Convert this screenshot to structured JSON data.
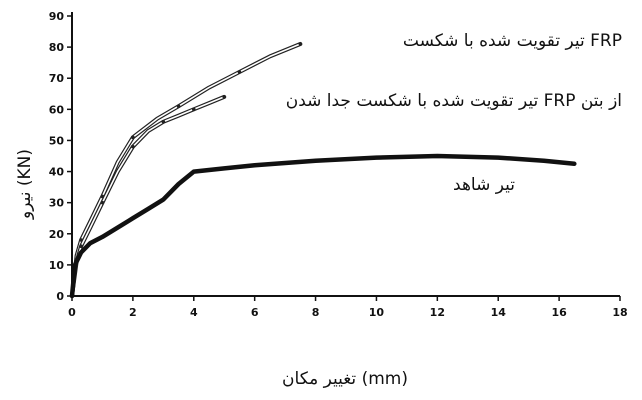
{
  "chart_data": {
    "type": "line",
    "xlabel": "تغییر مکان (mm)",
    "ylabel": "نیرو (KN)",
    "xlim": [
      0,
      18
    ],
    "ylim": [
      0,
      90
    ],
    "xticks": [
      0,
      2,
      4,
      6,
      8,
      10,
      12,
      14,
      16,
      18
    ],
    "yticks": [
      0,
      10,
      20,
      30,
      40,
      50,
      60,
      70,
      80,
      90
    ],
    "grid": false,
    "series": [
      {
        "name": "تیر تقویت شده با شکست FRP",
        "style": "double",
        "color": "#222222",
        "x": [
          0,
          0.15,
          0.3,
          0.6,
          1.0,
          1.5,
          2.0,
          2.8,
          3.5,
          4.5,
          5.5,
          6.5,
          7.5
        ],
        "y": [
          0,
          13,
          18,
          24,
          32,
          43,
          51,
          57,
          61,
          67,
          72,
          77,
          81
        ]
      },
      {
        "name": "تیر تقویت شده با شکست جدا شدن FRP از بتن",
        "style": "double",
        "color": "#222222",
        "x": [
          0,
          0.15,
          0.3,
          0.6,
          1.0,
          1.5,
          2.0,
          2.5,
          3.0,
          3.5,
          4.0,
          4.5,
          5.0
        ],
        "y": [
          0,
          11,
          16,
          22,
          30,
          40,
          48,
          53,
          56,
          58,
          60,
          62,
          64
        ]
      },
      {
        "name": "تیر شاهد",
        "style": "thick",
        "color": "#111111",
        "x": [
          0,
          0.1,
          0.3,
          0.6,
          1.0,
          1.5,
          2.0,
          2.5,
          3.0,
          3.5,
          4.0,
          5.0,
          6.0,
          8.0,
          10.0,
          12.0,
          14.0,
          15.5,
          16.5
        ],
        "y": [
          0,
          10,
          14,
          17,
          19,
          22,
          25,
          28,
          31,
          36,
          40,
          41,
          42,
          43.5,
          44.5,
          45,
          44.5,
          43.5,
          42.5
        ]
      }
    ]
  }
}
